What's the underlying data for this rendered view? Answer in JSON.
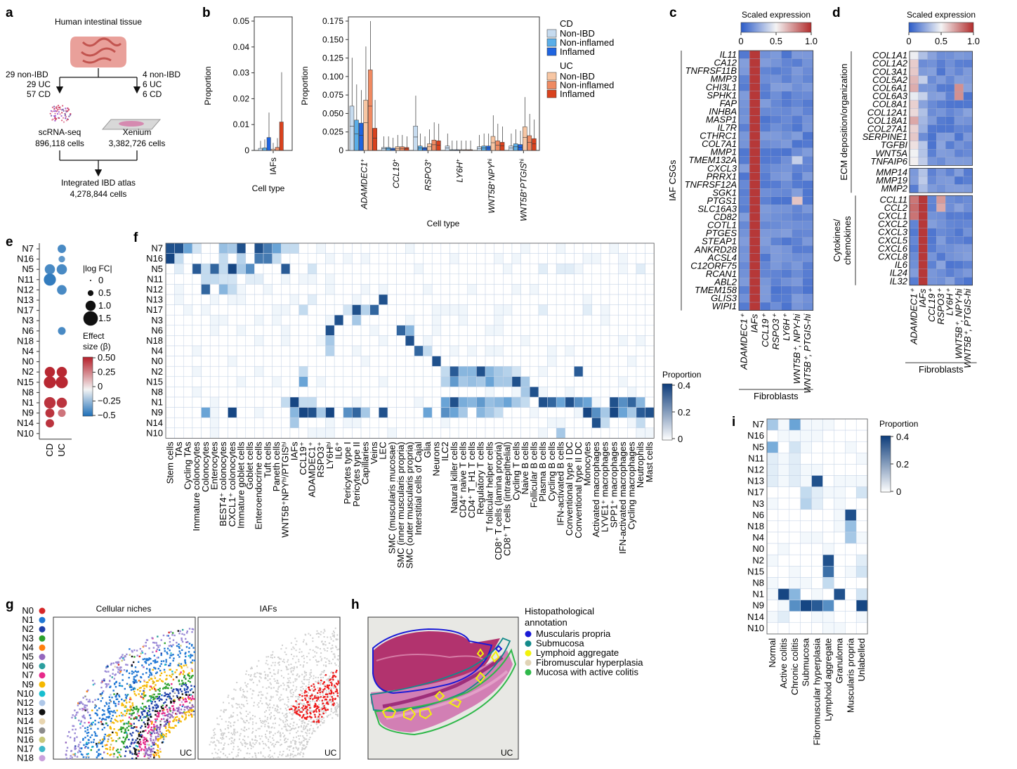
{
  "panels": {
    "a": {
      "label": "a",
      "tissue": "Human intestinal tissue",
      "left_counts": [
        "29 non-IBD",
        "29 UC",
        "57 CD"
      ],
      "right_counts": [
        "4 non-IBD",
        "6 UC",
        "6 CD"
      ],
      "scrna_title": "scRNA-seq",
      "scrna_cells": "896,118 cells",
      "xenium_title": "Xenium",
      "xenium_cells": "3,382,726 cells",
      "atlas_title": "Integrated IBD atlas",
      "atlas_cells": "4,278,844 cells"
    },
    "b": {
      "label": "b",
      "ylabel": "Proportion",
      "xlabel": "Cell type",
      "iaf_tick": "IAFs",
      "iaf_ylim": [
        0,
        0.05
      ],
      "iaf_yticks": [
        "0.05",
        "0.04",
        "0.03",
        "0.02",
        "0.01",
        "0"
      ],
      "iaf_values": [
        0.0008,
        0.001,
        0.005,
        0.0005,
        0.0012,
        0.011
      ],
      "main_ylim": [
        0,
        0.175
      ],
      "main_yticks": [
        "0.175",
        "0.150",
        "0.125",
        "0.100",
        "0.075",
        "0.050",
        "0.025",
        "0"
      ],
      "groups": [
        {
          "name": "ADAMDEC1",
          "sup": "+",
          "sub": "",
          "values": [
            0.06,
            0.041,
            0.037,
            0.068,
            0.109,
            0.03
          ]
        },
        {
          "name": "CCL19",
          "sup": "+",
          "sub": "",
          "values": [
            0.004,
            0.004,
            0.003,
            0.005,
            0.005,
            0.004
          ]
        },
        {
          "name": "RSPO3",
          "sup": "+",
          "sub": "",
          "values": [
            0.033,
            0.006,
            0.004,
            0.009,
            0.014,
            0.013
          ]
        },
        {
          "name": "LY6H",
          "sup": "+",
          "sub": "",
          "values": [
            0.006,
            0.001,
            0.001,
            0.001,
            0.001,
            0.001
          ]
        },
        {
          "name": "WNT5B",
          "sup": "+",
          "sub": "NPY",
          "sub_sup": "hi",
          "values": [
            0.005,
            0.006,
            0.006,
            0.019,
            0.013,
            0.011
          ]
        },
        {
          "name": "WNT5B",
          "sup": "+",
          "sub": "PTGIS",
          "sub_sup": "hi",
          "values": [
            0.006,
            0.009,
            0.008,
            0.032,
            0.02,
            0.016
          ]
        }
      ],
      "legend_cd_title": "CD",
      "legend_uc_title": "UC",
      "legend_items": [
        "Non-IBD",
        "Non-inflamed",
        "Inflamed"
      ],
      "colors_cd": [
        "#c6dbef",
        "#5aaee8",
        "#1f64e0"
      ],
      "colors_uc": [
        "#f7c6a3",
        "#ef8a62",
        "#d9421e"
      ]
    },
    "c": {
      "label": "c",
      "colorbar_title": "Scaled expression",
      "colorbar_ticks": [
        "0",
        "0.5",
        "1.0"
      ],
      "group_label": "IAF CSGs",
      "genes": [
        "IL11",
        "CA12",
        "TNFRSF11B",
        "MMP3",
        "CHI3L1",
        "SPHK1",
        "FAP",
        "INHBA",
        "MASP1",
        "IL7R",
        "CTHRC1",
        "COL7A1",
        "MMP1",
        "TMEM132A",
        "CXCL3",
        "PRRX1",
        "TNFRSF12A",
        "SGK1",
        "PTGS1",
        "SLC16A3",
        "CD82",
        "COTL1",
        "PTGES",
        "STEAP1",
        "ANKRD28",
        "ACSL4",
        "C12ORF75",
        "RCAN1",
        "ABL2",
        "TMEM158",
        "GLIS3",
        "WIPI1"
      ],
      "columns": [
        "ADAMDEC1⁺",
        "IAFs",
        "CCL19⁺",
        "RSPO3⁺",
        "LY6H⁺",
        "WNT5B⁺, NPY-hi",
        "WNT5B⁺, PTGIS-hi"
      ],
      "bottom_label": "Fibroblasts"
    },
    "d": {
      "label": "d",
      "colorbar_title": "Scaled expression",
      "colorbar_ticks": [
        "0",
        "0.5",
        "1.0"
      ],
      "group_ecm": "ECM deposition/organization",
      "group_cyto": [
        "Cytokines/",
        "chemokines"
      ],
      "genes_ecm": [
        "COL1A1",
        "COL1A2",
        "COL3A1",
        "COL5A2",
        "COL6A1",
        "COL6A3",
        "COL8A1",
        "COL12A1",
        "COL18A1",
        "COL27A1",
        "SERPINE1",
        "TGFBI",
        "WNT5A",
        "TNFAIP6"
      ],
      "genes_mmp": [
        "MMP14",
        "MMP19",
        "MMP2"
      ],
      "genes_cyto": [
        "CCL11",
        "CCL2",
        "CXCL1",
        "CXCL2",
        "CXCL3",
        "CXCL5",
        "CXCL6",
        "CXCL8",
        "IL6",
        "IL24",
        "IL32"
      ],
      "columns": [
        "ADAMDEC1⁺",
        "IAFs",
        "CCL19⁺",
        "RSPO3⁺",
        "LY6H⁺",
        "WNT5B⁺, NPY-hi",
        "WNT5B⁺, PTGIS-hi"
      ],
      "bottom_label": "Fibroblasts"
    },
    "e": {
      "label": "e",
      "niches": [
        "N7",
        "N16",
        "N5",
        "N11",
        "N12",
        "N13",
        "N17",
        "N3",
        "N6",
        "N18",
        "N4",
        "N0",
        "N2",
        "N15",
        "N8",
        "N1",
        "N9",
        "N14",
        "N10"
      ],
      "columns": [
        "CD",
        "UC"
      ],
      "size_title": "|log FC|",
      "size_ticks": [
        "0",
        "0.5",
        "1.0",
        "1.5"
      ],
      "effect_title": [
        "Effect",
        "size (β)"
      ],
      "effect_ticks": [
        "0.50",
        "0.25",
        "0",
        "−0.25",
        "−0.5"
      ]
    },
    "f": {
      "label": "f",
      "colorbar_title": "Proportion",
      "colorbar_ticks": [
        "0.4",
        "0.2",
        "0"
      ],
      "niches": [
        "N7",
        "N16",
        "N5",
        "N11",
        "N12",
        "N13",
        "N17",
        "N3",
        "N6",
        "N18",
        "N4",
        "N0",
        "N2",
        "N15",
        "N8",
        "N1",
        "N9",
        "N14",
        "N10"
      ],
      "cell_types": [
        "Stem cells",
        "TAs",
        "Cycling TAs",
        "Immature colonocytes",
        "Colonocytes",
        "Enterocytes",
        "BEST4⁺ colonocytes",
        "CXCL1⁺ colonocytes",
        "Immature goblet cells",
        "Goblet cells",
        "Enteroendocrine cells",
        "Tuft cells",
        "Paneth cells",
        "WNT5B⁺NPYʰⁱ/PTGISʰⁱ",
        "IAFs",
        "CCL19⁺",
        "ADAMDEC1⁺",
        "RSPO3⁺",
        "LY6Hʰⁱ",
        "IL6⁺",
        "Pericytes type I",
        "Pericytes type II",
        "Capillaries",
        "Veins",
        "LEC",
        "SMC (muscularis mucosae)",
        "SMC (inner muscularis propria)",
        "SMC (outer muscularis propria)",
        "Interstitial cells of Cajal",
        "Glia",
        "Neurons",
        "ILC2",
        "Natural killer cells",
        "CD4⁺ naive T cells",
        "CD4⁺ T_H1 T cells",
        "Regulatory T cells",
        "T follicular helper cells",
        "CD8⁺ T cells (lamina propria)",
        "CD8⁺ T cells (intraepithelial)",
        "Cycling T cells",
        "Naive B cells",
        "Follicular B cells",
        "Plasma B cells",
        "Cycling B cells",
        "IFN-activated B cells",
        "Conventional type I DC",
        "Conventional type II DC",
        "Monocytes",
        "Activated macrophages",
        "LYVE1⁺ macrophages",
        "SPP1⁺ macrophages",
        "IFN-activated macrophages",
        "Cycling macrophages",
        "Neutrophils",
        "Mast cells"
      ]
    },
    "g": {
      "label": "g",
      "niches": [
        "N0",
        "N1",
        "N2",
        "N3",
        "N4",
        "N5",
        "N6",
        "N7",
        "N9",
        "N10",
        "N12",
        "N13",
        "N14",
        "N15",
        "N16",
        "N17",
        "N18"
      ],
      "niche_colors": [
        "#d62728",
        "#1f77d4",
        "#1f3fa8",
        "#2ca02c",
        "#ff7f0e",
        "#9467bd",
        "#2b9e9e",
        "#e7298a",
        "#f5b800",
        "#17becf",
        "#aec7e8",
        "#111111",
        "#e8d5b0",
        "#8c8c8c",
        "#c7c77a",
        "#3fb8c9",
        "#c9a0dc"
      ],
      "title_left": "Cellular niches",
      "title_right": "IAFs",
      "corner_left": "UC",
      "corner_right": "UC"
    },
    "h": {
      "label": "h",
      "legend_title": [
        "Histopathological",
        "annotation"
      ],
      "legend_items": [
        "Muscularis propria",
        "Submucosa",
        "Lymphoid aggregate",
        "Fibromuscular hyperplasia",
        "Mucosa with active colitis"
      ],
      "legend_colors": [
        "#1a1ad6",
        "#138a8a",
        "#f2f20a",
        "#e0d3b5",
        "#2fb84a"
      ],
      "corner": "UC"
    },
    "i": {
      "label": "i",
      "colorbar_title": "Proportion",
      "colorbar_ticks": [
        "0.4",
        "0.2",
        "0"
      ],
      "niches": [
        "N7",
        "N16",
        "N5",
        "N11",
        "N12",
        "N13",
        "N17",
        "N3",
        "N6",
        "N18",
        "N4",
        "N0",
        "N2",
        "N15",
        "N8",
        "N1",
        "N9",
        "N14",
        "N10"
      ],
      "columns": [
        "Normal",
        "Active colitis",
        "Chronic colitis",
        "Submucosa",
        "Fibromuscular hyperplasia",
        "Lymphoid aggregate",
        "Granuloma",
        "Muscularis propria",
        "Unlabelled"
      ]
    }
  }
}
